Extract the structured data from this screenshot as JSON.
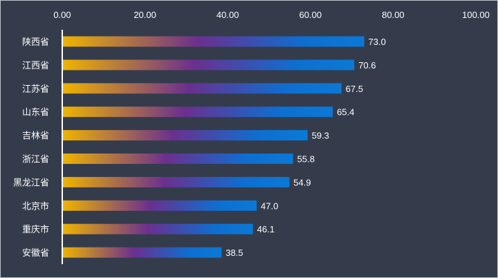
{
  "chart_data": {
    "type": "bar",
    "orientation": "horizontal",
    "categories": [
      "陕西省",
      "江西省",
      "江苏省",
      "山东省",
      "吉林省",
      "浙江省",
      "黑龙江省",
      "北京市",
      "重庆市",
      "安徽省"
    ],
    "values": [
      73.0,
      70.6,
      67.5,
      65.4,
      59.3,
      55.8,
      54.9,
      47.0,
      46.1,
      38.5
    ],
    "value_labels": [
      "73.0",
      "70.6",
      "67.5",
      "65.4",
      "59.3",
      "55.8",
      "54.9",
      "47.0",
      "46.1",
      "38.5"
    ],
    "xlim": [
      0,
      100
    ],
    "x_ticks": [
      0,
      20,
      40,
      60,
      80,
      100
    ],
    "x_tick_labels": [
      "0.00",
      "20.00",
      "40.00",
      "60.00",
      "80.00",
      "100.00"
    ],
    "x_axis_position": "top",
    "grid": false,
    "legend": "none",
    "colors": {
      "background": "#343c4c",
      "bar_gradient": [
        "#f0b400",
        "#6b2f8f",
        "#0d6fd1",
        "#0b79d6"
      ],
      "text": "#ffffff",
      "axis_line": "#ffffff"
    }
  }
}
